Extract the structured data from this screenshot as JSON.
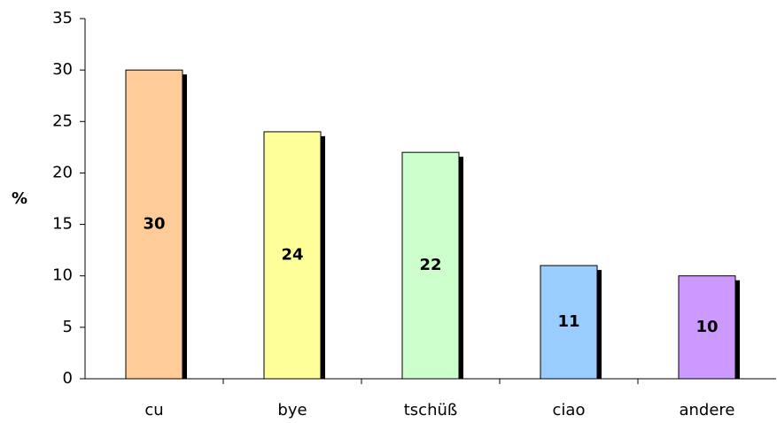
{
  "chart_data": {
    "type": "bar",
    "y_label": "%",
    "categories": [
      "cu",
      "bye",
      "tschüß",
      "ciao",
      "andere"
    ],
    "values": [
      30,
      24,
      22,
      11,
      10
    ],
    "colors": [
      "#ffcc99",
      "#ffff99",
      "#ccffcc",
      "#99ccff",
      "#cc99ff"
    ],
    "ylim": [
      0,
      35
    ],
    "yticks": [
      0,
      5,
      10,
      15,
      20,
      25,
      30,
      35
    ]
  }
}
